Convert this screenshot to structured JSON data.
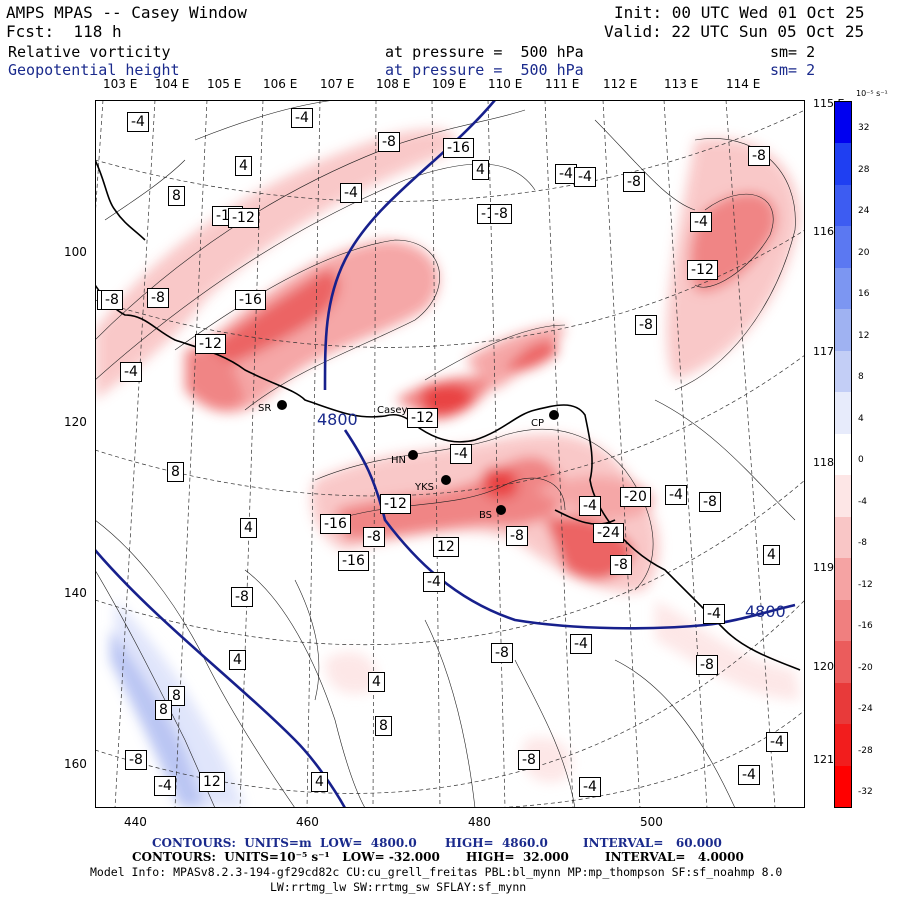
{
  "header": {
    "left_line1": "AMPS MPAS -- Casey Window",
    "left_line2": "Fcst:  118 h",
    "right_line1": "Init: 00 UTC Wed 01 Oct 25",
    "right_line2": "Valid: 22 UTC Sun 05 Oct 25",
    "field1": {
      "name": "Relative vorticity",
      "level": "at pressure =  500 hPa",
      "smooth": "sm= 2"
    },
    "field2": {
      "name": "Geopotential height",
      "level": "at pressure =  500 hPa",
      "smooth": "sm= 2"
    }
  },
  "map": {
    "top_longitudes": [
      "103 E",
      "104 E",
      "105 E",
      "106 E",
      "107 E",
      "108 E",
      "109 E",
      "110 E",
      "111 E",
      "112 E",
      "113 E",
      "114 E"
    ],
    "right_longitudes": [
      "115 E",
      "116 E",
      "117 E",
      "118 E",
      "119 E",
      "120 E",
      "121 E"
    ],
    "x_ticks": [
      "440",
      "460",
      "480",
      "500"
    ],
    "y_ticks": [
      "100",
      "120",
      "140",
      "160"
    ],
    "stations": [
      "SR",
      "Casey",
      "CP",
      "HN",
      "YKS",
      "BS"
    ],
    "height_labels": [
      "4800",
      "4800"
    ],
    "vort_labels": [
      "-4",
      "-4",
      "-8",
      "-16",
      "-12",
      "4",
      "8",
      "-4",
      "-12",
      "4",
      "-8",
      "-12",
      "-4",
      "-8",
      "-16",
      "-12",
      "-4",
      "-4",
      "-8",
      "-12",
      "-8",
      "-4",
      "-8",
      "-12",
      "-4",
      "-4",
      "8",
      "4",
      "-12",
      "-8",
      "-4",
      "-20",
      "-4",
      "-8",
      "-16",
      "12",
      "-16",
      "-8",
      "-24",
      "-8",
      "-4",
      "4",
      "-4",
      "-8",
      "-8",
      "-8",
      "-4",
      "4",
      "8",
      "8",
      "4",
      "8",
      "-8",
      "-4",
      "12",
      "4",
      "-8",
      "-4",
      "-4",
      "-4",
      "-8"
    ]
  },
  "colorbar": {
    "units": "10⁻⁵ s⁻¹",
    "labels": [
      "32",
      "28",
      "24",
      "20",
      "16",
      "12",
      "8",
      "4",
      "0",
      "-4",
      "-8",
      "-12",
      "-16",
      "-20",
      "-24",
      "-28",
      "-32"
    ],
    "colors": [
      "#0000f0",
      "#1f3ff2",
      "#3d5cf2",
      "#5b78f2",
      "#7c96f2",
      "#9fb2f2",
      "#c3cef6",
      "#e7ebfb",
      "#ffffff",
      "#fde6e6",
      "#f9c6c6",
      "#f5a3a3",
      "#f07f7f",
      "#eb5c5c",
      "#e83a3a",
      "#f21d1d",
      "#ff0000"
    ]
  },
  "footer": {
    "line1_a": "CONTOURS:  UNITS=m  LOW=  4800.0",
    "line1_b": "HIGH=  4860.0",
    "line1_c": "INTERVAL=   60.000",
    "line2_a": "CONTOURS:  UNITS=10⁻⁵ s⁻¹   LOW= -32.000",
    "line2_b": "HIGH=  32.000",
    "line2_c": "INTERVAL=   4.0000",
    "line3": "Model Info: MPASv8.2.3-194-gf29cd82c CU:cu_grell_freitas PBL:bl_mynn MP:mp_thompson SF:sf_noahmp 8.0",
    "line4": "LW:rrtmg_lw SW:rrtmg_sw SFLAY:sf_mynn"
  }
}
